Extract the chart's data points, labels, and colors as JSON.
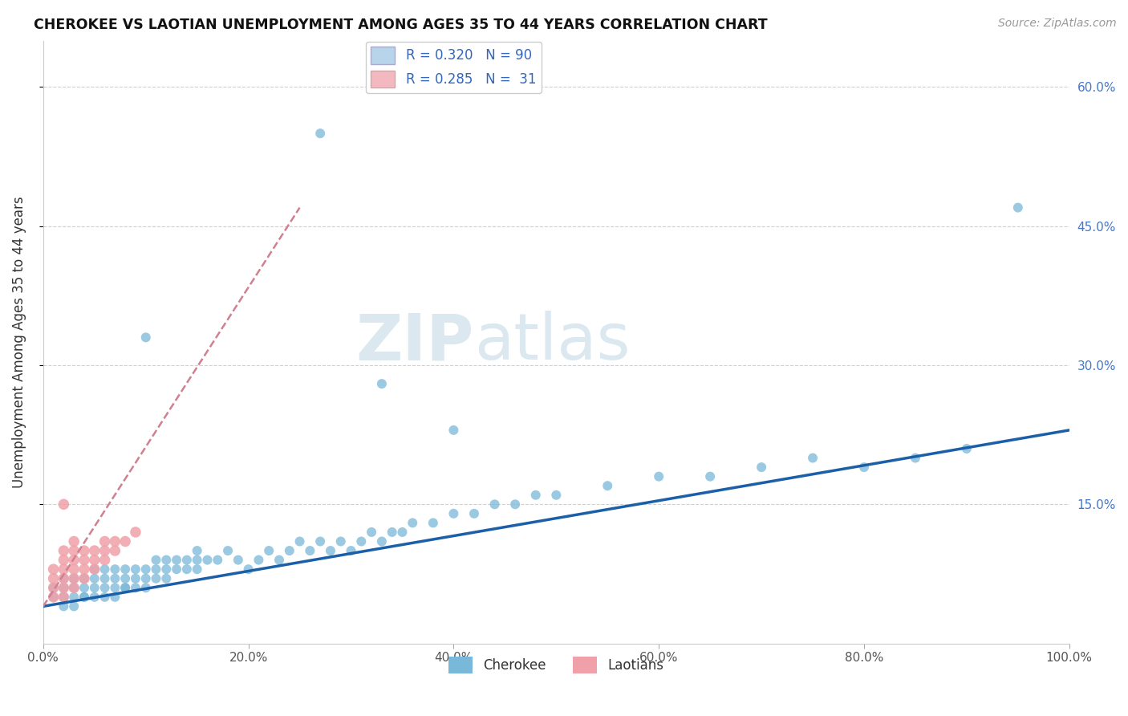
{
  "title": "CHEROKEE VS LAOTIAN UNEMPLOYMENT AMONG AGES 35 TO 44 YEARS CORRELATION CHART",
  "source": "Source: ZipAtlas.com",
  "ylabel": "Unemployment Among Ages 35 to 44 years",
  "xlim": [
    0,
    1.0
  ],
  "ylim": [
    0,
    0.65
  ],
  "xtick_labels": [
    "0.0%",
    "20.0%",
    "40.0%",
    "60.0%",
    "80.0%",
    "100.0%"
  ],
  "xtick_vals": [
    0.0,
    0.2,
    0.4,
    0.6,
    0.8,
    1.0
  ],
  "ytick_labels_right": [
    "15.0%",
    "30.0%",
    "45.0%",
    "60.0%"
  ],
  "ytick_vals_right": [
    0.15,
    0.3,
    0.45,
    0.6
  ],
  "cherokee_color": "#7ab8d9",
  "laotian_color": "#f0a0a8",
  "cherokee_line_color": "#1a5fa8",
  "laotian_line_color": "#d08090",
  "legend_box_cherokee": "#b8d4ea",
  "legend_box_laotian": "#f4b8c0",
  "R_cherokee": 0.32,
  "N_cherokee": 90,
  "R_laotian": 0.285,
  "N_laotian": 31,
  "watermark_zip": "ZIP",
  "watermark_atlas": "atlas",
  "background_color": "#ffffff",
  "grid_color": "#d0d0d0",
  "cherokee_x": [
    0.01,
    0.01,
    0.02,
    0.02,
    0.02,
    0.02,
    0.03,
    0.03,
    0.03,
    0.03,
    0.04,
    0.04,
    0.04,
    0.04,
    0.05,
    0.05,
    0.05,
    0.05,
    0.06,
    0.06,
    0.06,
    0.06,
    0.07,
    0.07,
    0.07,
    0.07,
    0.08,
    0.08,
    0.08,
    0.08,
    0.09,
    0.09,
    0.09,
    0.1,
    0.1,
    0.1,
    0.11,
    0.11,
    0.11,
    0.12,
    0.12,
    0.12,
    0.13,
    0.13,
    0.14,
    0.14,
    0.15,
    0.15,
    0.15,
    0.16,
    0.17,
    0.18,
    0.19,
    0.2,
    0.21,
    0.22,
    0.23,
    0.24,
    0.25,
    0.26,
    0.27,
    0.28,
    0.29,
    0.3,
    0.31,
    0.32,
    0.33,
    0.34,
    0.35,
    0.36,
    0.38,
    0.4,
    0.42,
    0.44,
    0.46,
    0.48,
    0.5,
    0.55,
    0.6,
    0.65,
    0.7,
    0.75,
    0.8,
    0.85,
    0.9,
    0.27,
    0.33,
    0.4,
    0.95,
    0.1
  ],
  "cherokee_y": [
    0.05,
    0.06,
    0.04,
    0.06,
    0.07,
    0.05,
    0.05,
    0.06,
    0.07,
    0.04,
    0.05,
    0.06,
    0.07,
    0.05,
    0.05,
    0.06,
    0.07,
    0.08,
    0.06,
    0.07,
    0.05,
    0.08,
    0.06,
    0.07,
    0.08,
    0.05,
    0.06,
    0.07,
    0.08,
    0.06,
    0.06,
    0.07,
    0.08,
    0.07,
    0.08,
    0.06,
    0.07,
    0.08,
    0.09,
    0.07,
    0.08,
    0.09,
    0.08,
    0.09,
    0.08,
    0.09,
    0.08,
    0.09,
    0.1,
    0.09,
    0.09,
    0.1,
    0.09,
    0.08,
    0.09,
    0.1,
    0.09,
    0.1,
    0.11,
    0.1,
    0.11,
    0.1,
    0.11,
    0.1,
    0.11,
    0.12,
    0.11,
    0.12,
    0.12,
    0.13,
    0.13,
    0.14,
    0.14,
    0.15,
    0.15,
    0.16,
    0.16,
    0.17,
    0.18,
    0.18,
    0.19,
    0.2,
    0.19,
    0.2,
    0.21,
    0.55,
    0.28,
    0.23,
    0.47,
    0.33
  ],
  "laotian_x": [
    0.01,
    0.01,
    0.01,
    0.01,
    0.02,
    0.02,
    0.02,
    0.02,
    0.02,
    0.02,
    0.03,
    0.03,
    0.03,
    0.03,
    0.03,
    0.03,
    0.04,
    0.04,
    0.04,
    0.04,
    0.05,
    0.05,
    0.05,
    0.06,
    0.06,
    0.06,
    0.07,
    0.07,
    0.08,
    0.09,
    0.02
  ],
  "laotian_y": [
    0.05,
    0.06,
    0.07,
    0.08,
    0.05,
    0.06,
    0.07,
    0.08,
    0.09,
    0.1,
    0.06,
    0.07,
    0.08,
    0.09,
    0.1,
    0.11,
    0.07,
    0.08,
    0.09,
    0.1,
    0.08,
    0.09,
    0.1,
    0.09,
    0.1,
    0.11,
    0.1,
    0.11,
    0.11,
    0.12,
    0.15
  ],
  "cherokee_line_x": [
    0.0,
    1.0
  ],
  "cherokee_line_y": [
    0.04,
    0.23
  ],
  "laotian_line_x": [
    0.0,
    0.25
  ],
  "laotian_line_y": [
    0.04,
    0.47
  ]
}
